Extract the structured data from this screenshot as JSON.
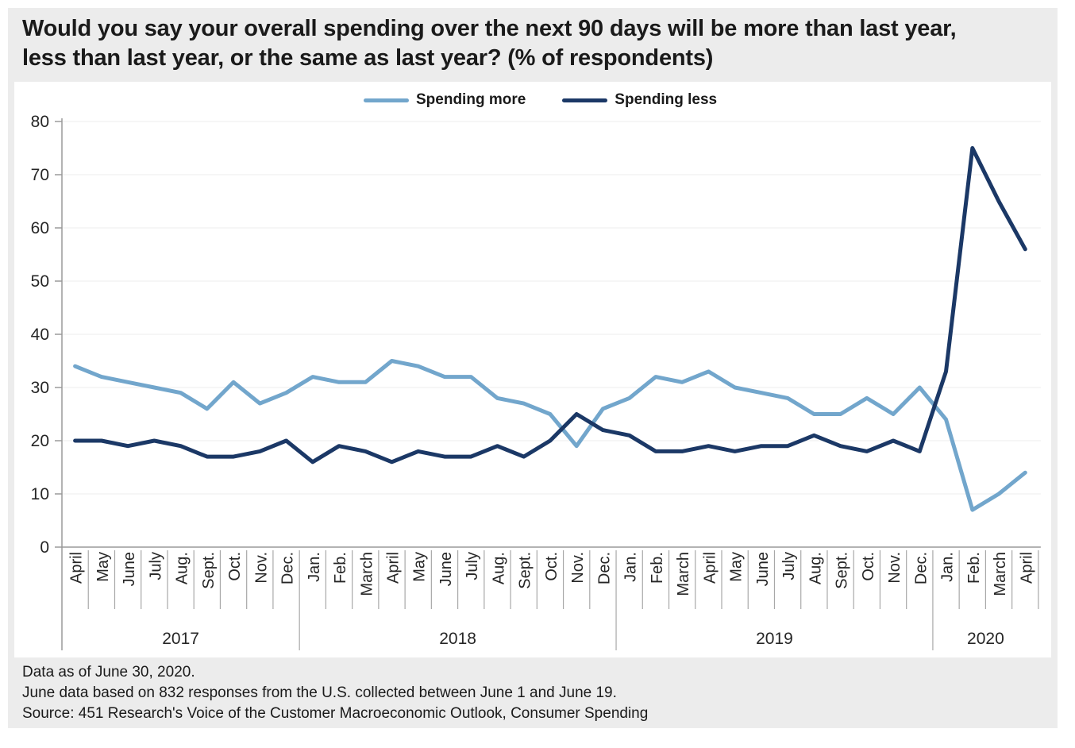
{
  "footer": {
    "line1": "Data as of June 30, 2020.",
    "line2": "June data based on 832 responses from the U.S. collected between June 1 and June 19.",
    "line3": "Source: 451 Research's Voice of the Customer Macroeconomic Outlook, Consumer Spending"
  },
  "colors": {
    "card_background": "#ececec",
    "panel_background": "#ffffff",
    "axis_line": "#9a9a9a",
    "gridline": "#ededed",
    "tick": "#a8a8a8",
    "text": "#262626",
    "spending_more": "#72a6cc",
    "spending_less": "#1b3866"
  },
  "chart_data": {
    "type": "line",
    "title": "Would you say your overall spending over the next 90 days will be more than last year,\nless than last year, or the same as last year? (% of respondents)",
    "legend_position": "top-center",
    "grid": "horizontal-light",
    "ylim": [
      0,
      80
    ],
    "ytick_step": 10,
    "xlabel": "",
    "ylabel": "% of respondents",
    "x_months": [
      "April",
      "May",
      "June",
      "July",
      "Aug.",
      "Sept.",
      "Oct.",
      "Nov.",
      "Dec.",
      "Jan.",
      "Feb.",
      "March",
      "April",
      "May",
      "June",
      "July",
      "Aug.",
      "Sept.",
      "Oct.",
      "Nov.",
      "Dec.",
      "Jan.",
      "Feb.",
      "March",
      "April",
      "May",
      "June",
      "July",
      "Aug.",
      "Sept.",
      "Oct.",
      "Nov.",
      "Dec.",
      "Jan.",
      "Feb.",
      "March",
      "April"
    ],
    "year_groups": [
      {
        "label": "2017",
        "count": 9
      },
      {
        "label": "2018",
        "count": 12
      },
      {
        "label": "2019",
        "count": 12
      },
      {
        "label": "2020",
        "count": 4
      }
    ],
    "series": [
      {
        "name": "Spending more",
        "color": "#72a6cc",
        "values": [
          34,
          32,
          31,
          30,
          29,
          26,
          31,
          27,
          29,
          32,
          31,
          31,
          35,
          34,
          32,
          32,
          28,
          27,
          25,
          19,
          26,
          28,
          32,
          31,
          33,
          30,
          29,
          28,
          25,
          25,
          28,
          25,
          30,
          24,
          7,
          10,
          14
        ]
      },
      {
        "name": "Spending less",
        "color": "#1b3866",
        "values": [
          20,
          20,
          19,
          20,
          19,
          17,
          17,
          18,
          20,
          16,
          19,
          18,
          16,
          18,
          17,
          17,
          19,
          17,
          20,
          25,
          22,
          21,
          18,
          18,
          19,
          18,
          19,
          19,
          21,
          19,
          18,
          20,
          18,
          33,
          75,
          65,
          56
        ]
      }
    ]
  }
}
